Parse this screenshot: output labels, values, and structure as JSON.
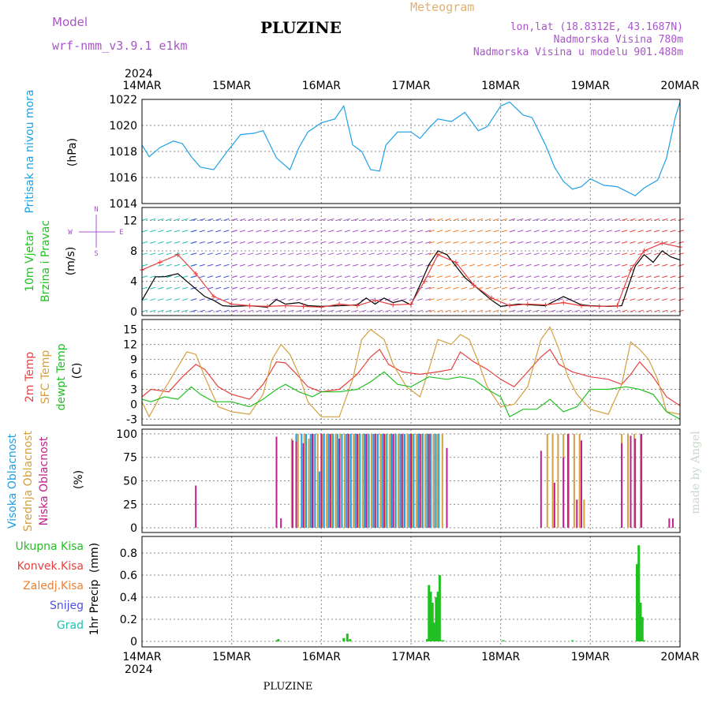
{
  "header": {
    "model_label": "Model",
    "model_name": "wrf-nmm_v3.9.1 e1km",
    "station": "PLUZINE",
    "meteogram_label": "Meteogram",
    "lonlat": "lon,lat (18.8312E, 43.1687N)",
    "altitude": "Nadmorska Visina 780m",
    "model_altitude": "Nadmorska Visina u modelu 901.488m",
    "footer_station": "PLUZINE",
    "watermark": "made by Angel"
  },
  "colors": {
    "purple": "#a855c8",
    "blue": "#1ea0e6",
    "green": "#22c022",
    "red": "#e84040",
    "orange": "#f08030",
    "tan": "#d4a040",
    "magenta": "#c0208a",
    "violet": "#5050e0",
    "teal": "#20c0b0"
  },
  "chart_data": {
    "type": "meteogram",
    "x_axis": {
      "year": "2024",
      "ticks": [
        "14MAR",
        "15MAR",
        "16MAR",
        "17MAR",
        "18MAR",
        "19MAR",
        "20MAR"
      ],
      "range_days": [
        0,
        6
      ]
    },
    "panels": [
      {
        "id": "pressure",
        "type": "line",
        "ylabel": "(hPa)",
        "side_label": "Pritisak na nivou mora",
        "ylim": [
          1014,
          1022
        ],
        "yticks": [
          1014,
          1016,
          1018,
          1020,
          1022
        ],
        "series": [
          {
            "name": "Pritisak na nivou mora",
            "x": [
              0,
              0.08,
              0.2,
              0.35,
              0.45,
              0.55,
              0.65,
              0.8,
              0.95,
              1.1,
              1.25,
              1.35,
              1.5,
              1.65,
              1.75,
              1.85,
              2,
              2.15,
              2.25,
              2.35,
              2.45,
              2.55,
              2.65,
              2.72,
              2.85,
              3,
              3.1,
              3.2,
              3.3,
              3.45,
              3.6,
              3.75,
              3.85,
              4,
              4.1,
              4.25,
              4.35,
              4.5,
              4.6,
              4.7,
              4.8,
              4.9,
              5,
              5.15,
              5.3,
              5.5,
              5.6,
              5.75,
              5.85,
              5.95,
              6
            ],
            "y": [
              1018.5,
              1017.6,
              1018.3,
              1018.8,
              1018.6,
              1017.6,
              1016.8,
              1016.6,
              1018,
              1019.3,
              1019.4,
              1019.6,
              1017.5,
              1016.6,
              1018.3,
              1019.5,
              1020.2,
              1020.5,
              1021.5,
              1018.5,
              1018,
              1016.6,
              1016.5,
              1018.5,
              1019.5,
              1019.5,
              1019,
              1019.8,
              1020.5,
              1020.3,
              1021,
              1019.6,
              1019.9,
              1021.5,
              1021.8,
              1020.8,
              1020.6,
              1018.5,
              1016.8,
              1015.7,
              1015.1,
              1015.3,
              1015.9,
              1015.4,
              1015.3,
              1014.6,
              1015.2,
              1015.8,
              1017.5,
              1020.7,
              1021.8
            ]
          }
        ]
      },
      {
        "id": "wind",
        "type": "line",
        "ylabel": "(m/s)",
        "side_label": [
          "10m Vjetar",
          "Brzina i Pravac"
        ],
        "compass_labels": [
          "N",
          "W",
          "E",
          "S"
        ],
        "ylim": [
          -0.5,
          13.7
        ],
        "yticks": [
          0,
          4,
          8,
          12
        ],
        "series": [
          {
            "name": "Brzina",
            "x": [
              0,
              0.15,
              0.25,
              0.4,
              0.55,
              0.7,
              0.8,
              0.9,
              1,
              1.2,
              1.4,
              1.5,
              1.6,
              1.75,
              1.85,
              2,
              2.2,
              2.4,
              2.5,
              2.6,
              2.7,
              2.8,
              2.9,
              3,
              3.1,
              3.2,
              3.3,
              3.4,
              3.5,
              3.6,
              3.7,
              3.8,
              3.9,
              4,
              4.2,
              4.5,
              4.7,
              4.9,
              5,
              5.2,
              5.35,
              5.5,
              5.6,
              5.7,
              5.8,
              5.9,
              6
            ],
            "y": [
              1.5,
              4.6,
              4.6,
              5.0,
              3.5,
              2.0,
              1.5,
              0.8,
              0.7,
              0.8,
              0.6,
              1.6,
              1.0,
              1.2,
              0.8,
              0.7,
              0.8,
              0.9,
              1.8,
              1.0,
              1.8,
              1.2,
              1.5,
              0.9,
              3.5,
              6.2,
              8.0,
              7.5,
              6.0,
              4.5,
              3.5,
              2.5,
              1.5,
              0.7,
              1.0,
              0.8,
              2.0,
              0.9,
              0.8,
              0.7,
              0.8,
              6.0,
              7.5,
              6.5,
              8.0,
              7.2,
              6.8
            ]
          },
          {
            "name": "Udari",
            "x": [
              0,
              0.2,
              0.4,
              0.6,
              0.8,
              1,
              1.2,
              1.4,
              1.6,
              1.8,
              2,
              2.2,
              2.4,
              2.6,
              2.8,
              3,
              3.15,
              3.3,
              3.5,
              3.7,
              3.9,
              4.1,
              4.3,
              4.5,
              4.7,
              4.9,
              5.1,
              5.3,
              5.45,
              5.6,
              5.8,
              6
            ],
            "y": [
              5.5,
              6.5,
              7.5,
              5.0,
              2.0,
              1.0,
              0.8,
              0.7,
              0.8,
              0.7,
              0.6,
              1.0,
              0.8,
              1.5,
              0.9,
              1.0,
              4.0,
              7.5,
              6.5,
              3.5,
              1.8,
              0.8,
              1.0,
              0.9,
              1.2,
              0.8,
              0.7,
              0.8,
              5.5,
              8.0,
              9.0,
              8.5
            ]
          }
        ]
      },
      {
        "id": "temperature",
        "type": "line",
        "ylabel": "(C)",
        "side_label": [
          "2m Temp",
          "SFC Temp",
          "dewpt Temp"
        ],
        "ylim": [
          -4.2,
          17
        ],
        "yticks": [
          -3,
          0,
          3,
          6,
          9,
          12,
          15
        ],
        "series": [
          {
            "name": "2m Temp",
            "x": [
              0,
              0.1,
              0.3,
              0.45,
              0.6,
              0.7,
              0.85,
              1,
              1.2,
              1.35,
              1.5,
              1.6,
              1.7,
              1.85,
              2,
              2.2,
              2.4,
              2.55,
              2.65,
              2.75,
              2.9,
              3.1,
              3.3,
              3.45,
              3.55,
              3.7,
              3.85,
              4,
              4.15,
              4.3,
              4.45,
              4.55,
              4.65,
              4.8,
              5,
              5.2,
              5.35,
              5.45,
              5.55,
              5.7,
              5.85,
              6
            ],
            "y": [
              1.5,
              3.0,
              2.5,
              5.5,
              8.0,
              7.0,
              3.5,
              2.0,
              1.0,
              4.0,
              8.5,
              8.3,
              6.5,
              3.5,
              2.5,
              3.0,
              6.0,
              9.5,
              11.0,
              8.0,
              6.5,
              6.0,
              6.5,
              7.0,
              10.5,
              8.5,
              7.0,
              5.0,
              3.5,
              6.5,
              9.5,
              11.0,
              8.0,
              6.5,
              5.5,
              5.0,
              4.0,
              6.0,
              8.5,
              5.5,
              1.5,
              -0.3
            ]
          },
          {
            "name": "SFC Temp",
            "x": [
              0,
              0.08,
              0.2,
              0.35,
              0.5,
              0.6,
              0.7,
              0.85,
              1,
              1.2,
              1.35,
              1.45,
              1.55,
              1.65,
              1.75,
              1.85,
              2,
              2.2,
              2.35,
              2.45,
              2.55,
              2.7,
              2.8,
              2.95,
              3.1,
              3.2,
              3.3,
              3.45,
              3.55,
              3.65,
              3.75,
              3.85,
              4,
              4.15,
              4.3,
              4.45,
              4.55,
              4.65,
              4.75,
              4.85,
              5,
              5.2,
              5.35,
              5.45,
              5.55,
              5.65,
              5.75,
              5.85,
              6
            ],
            "y": [
              0.5,
              -2.5,
              1.5,
              6.0,
              10.5,
              10.0,
              5.5,
              -0.5,
              -1.5,
              -2.0,
              2.0,
              9.0,
              12.0,
              10.0,
              6.0,
              0.5,
              -2.5,
              -2.5,
              5.0,
              13.0,
              15.0,
              13.0,
              8.0,
              3.5,
              1.5,
              7.0,
              13.0,
              12.0,
              14.0,
              13.0,
              8.5,
              3.5,
              -0.5,
              0.0,
              3.5,
              13.0,
              15.5,
              11.0,
              5.5,
              2.0,
              -1.0,
              -2.0,
              4.0,
              12.5,
              11.0,
              9.0,
              5.0,
              -1.5,
              -2.0
            ]
          },
          {
            "name": "dewpt Temp",
            "x": [
              0,
              0.1,
              0.25,
              0.4,
              0.55,
              0.65,
              0.8,
              1,
              1.2,
              1.35,
              1.5,
              1.6,
              1.75,
              1.9,
              2,
              2.2,
              2.4,
              2.55,
              2.7,
              2.85,
              3,
              3.2,
              3.4,
              3.55,
              3.7,
              3.85,
              4,
              4.1,
              4.25,
              4.4,
              4.55,
              4.7,
              4.85,
              5,
              5.2,
              5.4,
              5.55,
              5.7,
              5.85,
              6
            ],
            "y": [
              1.0,
              0.5,
              1.5,
              1.0,
              3.5,
              2.0,
              0.5,
              0.5,
              -0.5,
              1.0,
              3.0,
              4.0,
              2.5,
              1.5,
              2.5,
              2.5,
              3.0,
              4.5,
              6.5,
              4.0,
              3.5,
              5.5,
              5.0,
              5.5,
              5.0,
              3.0,
              1.5,
              -2.5,
              -1.0,
              -1.0,
              1.0,
              -1.5,
              -0.5,
              3.0,
              3.0,
              3.5,
              3.0,
              2.0,
              -1.5,
              -3.0
            ]
          }
        ]
      },
      {
        "id": "cloud",
        "type": "bar",
        "ylabel": "(%)",
        "side_label": [
          "Visoka Oblacnost",
          "Srednja Oblacnost",
          "Niska Oblacnost"
        ],
        "ylim": [
          -5,
          105
        ],
        "yticks": [
          0,
          25,
          50,
          75,
          100
        ],
        "series": [
          {
            "name": "Visoka Oblacnost",
            "x": [
              1.72,
              1.78,
              1.83,
              1.88,
              1.93,
              1.98,
              2.03,
              2.08,
              2.13,
              2.18,
              2.23,
              2.28,
              2.33,
              2.38,
              2.43,
              2.48,
              2.53,
              2.58,
              2.63,
              2.68,
              2.73,
              2.78,
              2.83,
              2.88,
              2.93,
              2.98,
              3.03,
              3.08,
              3.13,
              3.18,
              3.22,
              3.27,
              3.31
            ],
            "values": [
              100,
              100,
              100,
              100,
              100,
              60,
              100,
              100,
              100,
              100,
              100,
              100,
              100,
              100,
              100,
              100,
              100,
              100,
              100,
              100,
              100,
              100,
              100,
              100,
              100,
              100,
              100,
              100,
              100,
              100,
              100,
              100,
              100
            ]
          },
          {
            "name": "Srednja Oblacnost",
            "x": [
              1.67,
              1.74,
              1.81,
              1.86,
              1.91,
              1.96,
              2.01,
              2.06,
              2.11,
              2.16,
              2.21,
              2.26,
              2.31,
              2.36,
              2.41,
              2.46,
              2.51,
              2.56,
              2.61,
              2.66,
              2.71,
              2.76,
              2.81,
              2.86,
              2.91,
              2.96,
              3.01,
              3.06,
              3.11,
              3.16,
              3.2,
              3.25,
              3.29,
              3.35,
              4.52,
              4.58,
              4.64,
              4.7,
              4.76,
              4.82,
              4.88,
              4.93,
              5.35,
              5.42,
              5.49,
              5.56
            ],
            "values": [
              95,
              100,
              100,
              95,
              100,
              100,
              100,
              100,
              100,
              100,
              100,
              100,
              100,
              100,
              100,
              100,
              100,
              100,
              100,
              100,
              100,
              100,
              100,
              100,
              100,
              100,
              100,
              100,
              100,
              100,
              100,
              100,
              100,
              100,
              100,
              100,
              100,
              100,
              100,
              100,
              100,
              30,
              100,
              100,
              100,
              100
            ]
          },
          {
            "name": "Niska Oblacnost",
            "x": [
              0.6,
              1.5,
              1.55,
              1.68,
              1.72,
              1.8,
              1.9,
              2.0,
              2.1,
              2.2,
              2.3,
              2.4,
              2.5,
              2.6,
              2.7,
              2.8,
              2.9,
              3.0,
              3.1,
              3.2,
              3.4,
              4.45,
              4.6,
              4.7,
              4.75,
              4.85,
              4.9,
              5.35,
              5.45,
              5.5,
              5.57,
              5.88,
              5.92
            ],
            "values": [
              45,
              97,
              10,
              93,
              92,
              90,
              100,
              100,
              100,
              95,
              100,
              100,
              100,
              100,
              100,
              100,
              100,
              100,
              100,
              100,
              85,
              82,
              48,
              75,
              100,
              30,
              93,
              90,
              98,
              95,
              100,
              10,
              10
            ]
          }
        ]
      },
      {
        "id": "precip",
        "type": "bar",
        "ylabel": "(mm)",
        "side_label": [
          "1hr Precip"
        ],
        "legend": [
          "Ukupna Kisa",
          "Konvek.Kisa",
          "Zaledj.Kisa",
          "Snijeg",
          "Grad"
        ],
        "ylim": [
          -0.05,
          0.95
        ],
        "yticks": [
          0,
          0.2,
          0.4,
          0.6,
          0.8
        ],
        "series": [
          {
            "name": "Ukupna Kisa",
            "x": [
              1.5,
              1.52,
              2.25,
              2.29,
              2.32,
              3.18,
              3.2,
              3.22,
              3.24,
              3.26,
              3.28,
              3.3,
              3.32,
              3.34,
              3.36,
              4.03,
              4.8,
              5.52,
              5.54,
              5.56,
              5.58,
              5.6
            ],
            "values": [
              0.01,
              0.02,
              0.03,
              0.07,
              0.02,
              0.02,
              0.51,
              0.45,
              0.35,
              0.17,
              0.4,
              0.45,
              0.6,
              0.01,
              0.01,
              0.01,
              0.01,
              0.7,
              0.87,
              0.35,
              0.22,
              0.01
            ]
          }
        ]
      }
    ]
  }
}
